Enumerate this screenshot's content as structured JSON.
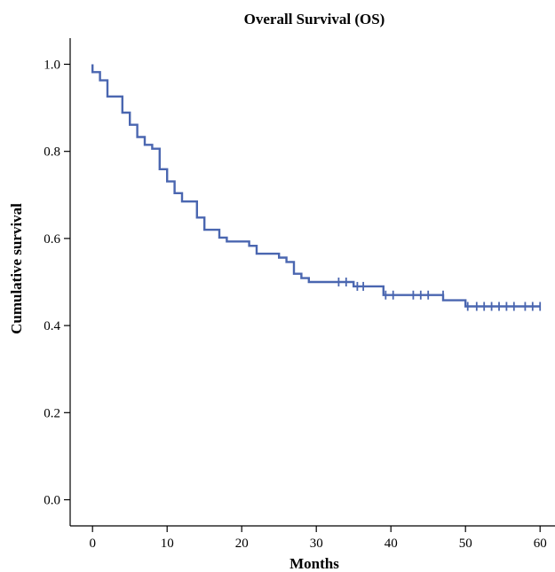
{
  "chart_data": {
    "type": "line",
    "title": "Overall Survival (OS)",
    "xlabel": "Months",
    "ylabel": "Cumulative survival",
    "xlim": [
      -3,
      62
    ],
    "ylim": [
      -0.06,
      1.06
    ],
    "xticks": [
      0,
      10,
      20,
      30,
      40,
      50,
      60
    ],
    "yticks": [
      0.0,
      0.2,
      0.4,
      0.6,
      0.8,
      1.0
    ],
    "ytick_labels": [
      "0.0",
      "0.2",
      "0.4",
      "0.6",
      "0.8",
      "1.0"
    ],
    "grid": false,
    "series": [
      {
        "color": "#4a66b0",
        "step_points": [
          [
            0,
            1.0
          ],
          [
            0,
            0.982
          ],
          [
            1,
            0.982
          ],
          [
            1,
            0.963
          ],
          [
            2,
            0.963
          ],
          [
            2,
            0.926
          ],
          [
            4,
            0.926
          ],
          [
            4,
            0.889
          ],
          [
            5,
            0.889
          ],
          [
            5,
            0.861
          ],
          [
            6,
            0.861
          ],
          [
            6,
            0.833
          ],
          [
            7,
            0.833
          ],
          [
            7,
            0.815
          ],
          [
            8,
            0.815
          ],
          [
            8,
            0.806
          ],
          [
            9,
            0.806
          ],
          [
            9,
            0.759
          ],
          [
            10,
            0.759
          ],
          [
            10,
            0.731
          ],
          [
            11,
            0.731
          ],
          [
            11,
            0.704
          ],
          [
            12,
            0.704
          ],
          [
            12,
            0.685
          ],
          [
            14,
            0.685
          ],
          [
            14,
            0.648
          ],
          [
            15,
            0.648
          ],
          [
            15,
            0.62
          ],
          [
            17,
            0.62
          ],
          [
            17,
            0.602
          ],
          [
            18,
            0.602
          ],
          [
            18,
            0.593
          ],
          [
            21,
            0.593
          ],
          [
            21,
            0.583
          ],
          [
            22,
            0.583
          ],
          [
            22,
            0.565
          ],
          [
            25,
            0.565
          ],
          [
            25,
            0.556
          ],
          [
            26,
            0.556
          ],
          [
            26,
            0.546
          ],
          [
            27,
            0.546
          ],
          [
            27,
            0.519
          ],
          [
            28,
            0.519
          ],
          [
            28,
            0.509
          ],
          [
            29,
            0.509
          ],
          [
            29,
            0.5
          ],
          [
            35,
            0.5
          ],
          [
            35,
            0.49
          ],
          [
            39,
            0.49
          ],
          [
            39,
            0.47
          ],
          [
            47,
            0.47
          ],
          [
            47,
            0.458
          ],
          [
            50,
            0.458
          ],
          [
            50,
            0.444
          ],
          [
            60,
            0.444
          ]
        ],
        "censored": [
          [
            33,
            0.5
          ],
          [
            34,
            0.5
          ],
          [
            35.5,
            0.49
          ],
          [
            36.3,
            0.49
          ],
          [
            39.3,
            0.47
          ],
          [
            40.3,
            0.47
          ],
          [
            43,
            0.47
          ],
          [
            44,
            0.47
          ],
          [
            45,
            0.47
          ],
          [
            47,
            0.47
          ],
          [
            50.3,
            0.444
          ],
          [
            51.5,
            0.444
          ],
          [
            52.5,
            0.444
          ],
          [
            53.5,
            0.444
          ],
          [
            54.5,
            0.444
          ],
          [
            55.5,
            0.444
          ],
          [
            56.5,
            0.444
          ],
          [
            58,
            0.444
          ],
          [
            59,
            0.444
          ],
          [
            60,
            0.444
          ]
        ]
      }
    ]
  }
}
